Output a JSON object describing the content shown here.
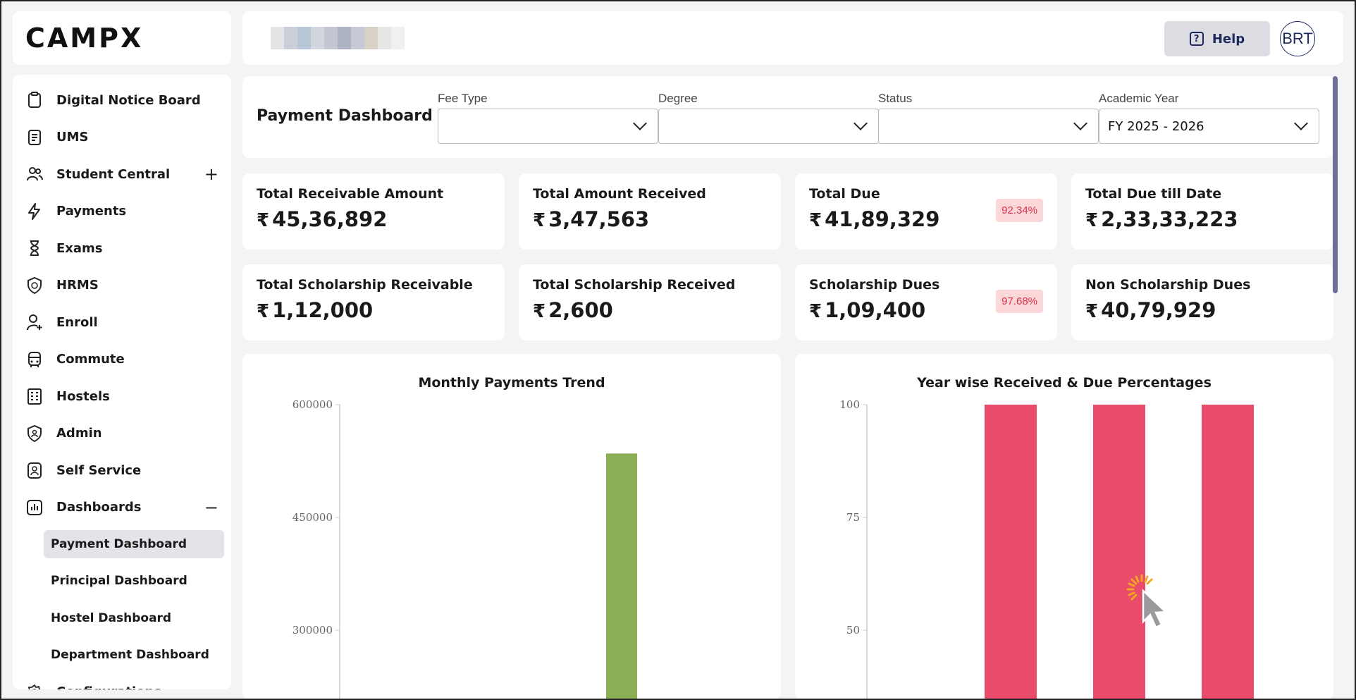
{
  "brand": {
    "logo_text": "CAMPX"
  },
  "sidebar": {
    "items": [
      {
        "label": "Digital Notice Board",
        "icon": "clipboard-icon"
      },
      {
        "label": "UMS",
        "icon": "document-icon"
      },
      {
        "label": "Student Central",
        "icon": "users-icon",
        "toggle": "+"
      },
      {
        "label": "Payments",
        "icon": "lightning-icon"
      },
      {
        "label": "Exams",
        "icon": "hourglass-icon"
      },
      {
        "label": "HRMS",
        "icon": "shield-money-icon"
      },
      {
        "label": "Enroll",
        "icon": "user-add-icon"
      },
      {
        "label": "Commute",
        "icon": "bus-icon"
      },
      {
        "label": "Hostels",
        "icon": "building-icon"
      },
      {
        "label": "Admin",
        "icon": "shield-user-icon"
      },
      {
        "label": "Self Service",
        "icon": "badge-icon"
      },
      {
        "label": "Dashboards",
        "icon": "chart-icon",
        "toggle": "−"
      }
    ],
    "sub_items": [
      {
        "label": "Payment Dashboard",
        "active": true
      },
      {
        "label": "Principal Dashboard"
      },
      {
        "label": "Hostel Dashboard"
      },
      {
        "label": "Department Dashboard"
      }
    ],
    "last_item": {
      "label": "Configurations",
      "icon": "gear-icon"
    }
  },
  "header": {
    "help_label": "Help",
    "avatar_initials": "BRT"
  },
  "filters": {
    "page_title": "Payment Dashboard",
    "fields": [
      {
        "label": "Fee Type",
        "value": ""
      },
      {
        "label": "Degree",
        "value": ""
      },
      {
        "label": "Status",
        "value": ""
      },
      {
        "label": "Academic Year",
        "value": "FY 2025 - 2026"
      }
    ]
  },
  "stats": [
    {
      "label": "Total Receivable Amount",
      "currency": "₹",
      "value": "45,36,892"
    },
    {
      "label": "Total Amount Received",
      "currency": "₹",
      "value": "3,47,563"
    },
    {
      "label": "Total Due",
      "currency": "₹",
      "value": "41,89,329",
      "badge": "92.34%"
    },
    {
      "label": "Total Due till Date",
      "currency": "₹",
      "value": "2,33,33,223"
    },
    {
      "label": "Total Scholarship Receivable",
      "currency": "₹",
      "value": "1,12,000"
    },
    {
      "label": "Total Scholarship Received",
      "currency": "₹",
      "value": "2,600"
    },
    {
      "label": "Scholarship Dues",
      "currency": "₹",
      "value": "1,09,400",
      "badge": "97.68%"
    },
    {
      "label": "Non Scholarship Dues",
      "currency": "₹",
      "value": "40,79,929"
    }
  ],
  "colors": {
    "accent": "#1d2a5c",
    "badge_bg": "#fbd7da",
    "badge_text": "#d9304a",
    "bar_green": "#8aaf55",
    "bar_red": "#e94b6b"
  },
  "chart_data": [
    {
      "type": "bar",
      "title": "Monthly Payments Trend",
      "y_ticks": [
        "600000",
        "450000",
        "300000"
      ],
      "ylim": [
        0,
        600000
      ],
      "visible_ylim": [
        240000,
        600000
      ],
      "series": [
        {
          "values": [
            0,
            0,
            0,
            0,
            0,
            0,
            0,
            0,
            535000,
            0,
            0,
            0
          ]
        }
      ],
      "grid": false
    },
    {
      "type": "bar",
      "title": "Year wise Received & Due Percentages",
      "y_ticks": [
        "100",
        "75",
        "50"
      ],
      "ylim": [
        0,
        100
      ],
      "visible_ylim": [
        38,
        100
      ],
      "series": [
        {
          "values": [
            0,
            100,
            100,
            100
          ]
        }
      ],
      "grid": false
    }
  ]
}
